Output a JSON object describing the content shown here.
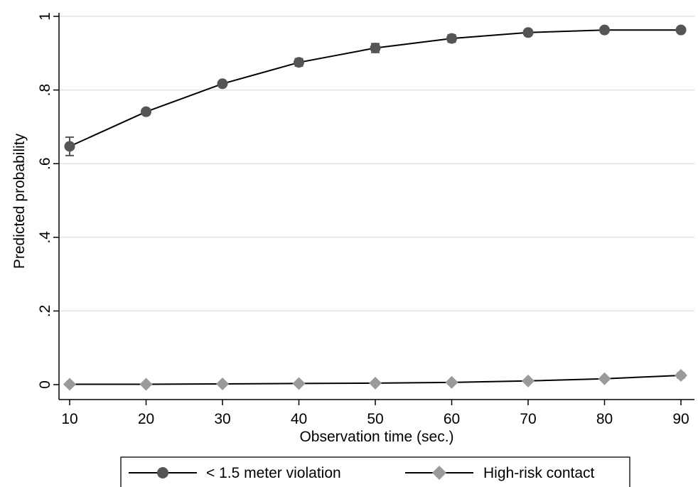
{
  "chart_data": {
    "type": "line",
    "xlabel": "Observation time (sec.)",
    "ylabel": "Predicted probability",
    "x": [
      10,
      20,
      30,
      40,
      50,
      60,
      70,
      80,
      90
    ],
    "xticks": [
      "10",
      "20",
      "30",
      "40",
      "50",
      "60",
      "70",
      "80",
      "90"
    ],
    "yticks": [
      {
        "value": 0,
        "label": "0"
      },
      {
        "value": 0.2,
        "label": ".2"
      },
      {
        "value": 0.4,
        "label": ".4"
      },
      {
        "value": 0.6,
        "label": ".6"
      },
      {
        "value": 0.8,
        "label": ".8"
      },
      {
        "value": 1,
        "label": "1"
      }
    ],
    "xlim": [
      10,
      90
    ],
    "ylim": [
      0,
      1
    ],
    "grid": true,
    "legend_position": "bottom",
    "series": [
      {
        "name": "< 1.5 meter violation",
        "marker": "circle",
        "color": "#555555",
        "values": [
          0.647,
          0.741,
          0.817,
          0.875,
          0.914,
          0.94,
          0.956,
          0.963,
          0.963
        ],
        "ci_low": [
          0.622,
          0.733,
          0.81,
          0.865,
          0.902,
          0.93,
          0.948,
          0.956,
          0.956
        ],
        "ci_high": [
          0.672,
          0.749,
          0.824,
          0.885,
          0.926,
          0.95,
          0.964,
          0.97,
          0.97
        ]
      },
      {
        "name": "High-risk contact",
        "marker": "diamond",
        "color": "#9a9a9a",
        "values": [
          0.001,
          0.001,
          0.002,
          0.003,
          0.004,
          0.006,
          0.01,
          0.016,
          0.025
        ],
        "ci_low": [
          0.0,
          0.0,
          0.001,
          0.002,
          0.003,
          0.005,
          0.008,
          0.012,
          0.018
        ],
        "ci_high": [
          0.002,
          0.002,
          0.003,
          0.004,
          0.005,
          0.007,
          0.012,
          0.02,
          0.032
        ]
      }
    ]
  }
}
